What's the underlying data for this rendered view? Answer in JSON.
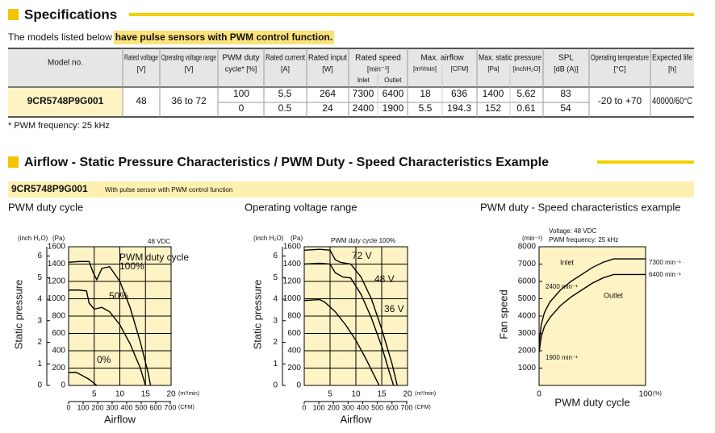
{
  "specifications": {
    "title": "Specifications",
    "intro": "The models listed below",
    "intro_highlight": "have pulse sensors with PWM control function.",
    "table": {
      "headers": [
        {
          "label": "Model no."
        },
        {
          "label": "Rated voltage",
          "unit": "[V]"
        },
        {
          "label": "Operating voltage range",
          "unit": "[V]"
        },
        {
          "label": "PWM duty",
          "unit": "cycle* [%]"
        },
        {
          "label": "Rated current",
          "unit": "[A]"
        },
        {
          "label": "Rated input",
          "unit": "[W]"
        },
        {
          "label": "Rated speed",
          "unit": "[min⁻¹]",
          "sub": [
            "Inlet",
            "Outlet"
          ]
        },
        {
          "label": "Max. airflow",
          "units": [
            "[m³/min]",
            "[CFM]"
          ]
        },
        {
          "label": "Max. static pressure",
          "units": [
            "[Pa]",
            "[inchH₂O]"
          ]
        },
        {
          "label": "SPL",
          "unit": "[dB (A)]"
        },
        {
          "label": "Operating temperature",
          "unit": "[°C]"
        },
        {
          "label": "Expected life",
          "unit": "[h]"
        }
      ],
      "model": "9CR5748P9G001",
      "rated_voltage": 48,
      "operating_voltage_range": "36 to 72",
      "operating_temperature": "-20 to +70",
      "expected_life": "40000/60°C",
      "rows": [
        [
          100,
          5.5,
          264,
          7300,
          6400,
          18,
          636,
          1400,
          5.62,
          83
        ],
        [
          0,
          0.5,
          24,
          2400,
          1900,
          5.5,
          194.3,
          152,
          0.61,
          54
        ]
      ]
    },
    "footnote": "* PWM frequency: 25 kHz"
  },
  "characteristics": {
    "title": "Airflow - Static Pressure Characteristics / PWM Duty - Speed Characteristics Example",
    "model": "9CR5748P9G001",
    "model_note": "With pulse sensor with PWM control function"
  },
  "chart_data": [
    {
      "type": "line",
      "title": "PWM duty cycle",
      "xlabel": "Airflow",
      "ylabel": "Static pressure",
      "x_unit": "(m³/min)",
      "x2_unit": "(CFM)",
      "y_unit": "(Pa)",
      "y2_unit": "(inch H₂O)",
      "xlim": [
        0,
        20
      ],
      "xticks": [
        5,
        10,
        15,
        20
      ],
      "x2lim": [
        0,
        706
      ],
      "x2ticks": [
        0,
        100,
        200,
        300,
        400,
        500,
        600,
        700
      ],
      "ylim": [
        0,
        1600
      ],
      "yticks": [
        0,
        200,
        400,
        600,
        800,
        1000,
        1200,
        1400,
        1600
      ],
      "y2lim": [
        0,
        6.43
      ],
      "y2ticks": [
        0,
        1,
        2,
        3,
        4,
        5,
        6
      ],
      "grid": true,
      "annotations": [
        "48 VDC",
        "PWM duty cycle"
      ],
      "series": [
        {
          "name": "100%",
          "color": "#000000",
          "x": [
            0,
            2,
            4,
            4.8,
            5.5,
            6.5,
            8,
            10,
            12,
            14,
            15.5,
            16
          ],
          "values": [
            1420,
            1430,
            1430,
            1300,
            1220,
            1350,
            1370,
            1200,
            900,
            500,
            150,
            0
          ]
        },
        {
          "name": "50%",
          "color": "#000000",
          "x": [
            0,
            2,
            3.5,
            4,
            5,
            6.5,
            8,
            10,
            12,
            14,
            15
          ],
          "values": [
            1100,
            1100,
            1090,
            950,
            880,
            900,
            850,
            700,
            480,
            200,
            0
          ]
        },
        {
          "name": "0%",
          "color": "#000000",
          "x": [
            0,
            1.5,
            2.5,
            4,
            5.5
          ],
          "values": [
            150,
            150,
            120,
            70,
            0
          ]
        }
      ]
    },
    {
      "type": "line",
      "title": "Operating voltage range",
      "xlabel": "Airflow",
      "ylabel": "Static pressure",
      "x_unit": "(m³/min)",
      "x2_unit": "(CFM)",
      "y_unit": "(Pa)",
      "y2_unit": "(inch H₂O)",
      "xlim": [
        0,
        20
      ],
      "xticks": [
        5,
        10,
        15,
        20
      ],
      "x2lim": [
        0,
        706
      ],
      "x2ticks": [
        0,
        100,
        200,
        300,
        400,
        500,
        600,
        700
      ],
      "ylim": [
        0,
        1600
      ],
      "yticks": [
        0,
        200,
        400,
        600,
        800,
        1000,
        1200,
        1400,
        1600
      ],
      "y2lim": [
        0,
        6.43
      ],
      "y2ticks": [
        0,
        1,
        2,
        3,
        4,
        5,
        6
      ],
      "grid": true,
      "annotations": [
        "PWM duty cycle 100%"
      ],
      "series": [
        {
          "name": "72 V",
          "color": "#000000",
          "x": [
            0,
            3,
            5,
            6,
            7,
            9,
            11,
            13,
            15,
            17,
            18
          ],
          "values": [
            1560,
            1570,
            1560,
            1450,
            1420,
            1400,
            1250,
            1000,
            650,
            250,
            0
          ]
        },
        {
          "name": "48 V",
          "color": "#000000",
          "x": [
            0,
            3,
            5,
            6,
            7.5,
            9,
            11,
            13,
            15,
            16.5,
            17.3
          ],
          "values": [
            1400,
            1410,
            1400,
            1300,
            1250,
            1240,
            1050,
            780,
            450,
            150,
            0
          ]
        },
        {
          "name": "36 V",
          "color": "#000000",
          "x": [
            0,
            3,
            4,
            6,
            8,
            10,
            12,
            13.5,
            14.5
          ],
          "values": [
            980,
            990,
            960,
            850,
            700,
            520,
            300,
            120,
            0
          ]
        }
      ]
    },
    {
      "type": "line",
      "title": "PWM duty - Speed characteristics example",
      "xlabel": "PWM duty cycle",
      "ylabel": "Fan speed",
      "x_unit": "(%)",
      "y_unit": "(min⁻¹)",
      "xlim": [
        0,
        100
      ],
      "xticks": [
        0,
        100
      ],
      "ylim": [
        0,
        8000
      ],
      "yticks": [
        1000,
        2000,
        3000,
        4000,
        5000,
        6000,
        7000,
        8000
      ],
      "grid": false,
      "annotations": [
        "Voltage: 48 VDC",
        "PWM frequency: 25 kHz",
        "7300 min⁻¹",
        "6400 min⁻¹",
        "2400 min⁻¹",
        "1900 min⁻¹"
      ],
      "series": [
        {
          "name": "Inlet",
          "color": "#000000",
          "x": [
            0,
            2,
            5,
            10,
            20,
            30,
            40,
            50,
            60,
            70,
            75,
            100
          ],
          "values": [
            2400,
            3500,
            4200,
            4800,
            5500,
            6000,
            6400,
            6800,
            7100,
            7300,
            7300,
            7300
          ]
        },
        {
          "name": "Outlet",
          "color": "#000000",
          "x": [
            0,
            2,
            5,
            10,
            20,
            30,
            40,
            50,
            60,
            70,
            80,
            100
          ],
          "values": [
            1900,
            2800,
            3400,
            3900,
            4600,
            5100,
            5500,
            5900,
            6200,
            6400,
            6400,
            6400
          ]
        }
      ]
    }
  ]
}
